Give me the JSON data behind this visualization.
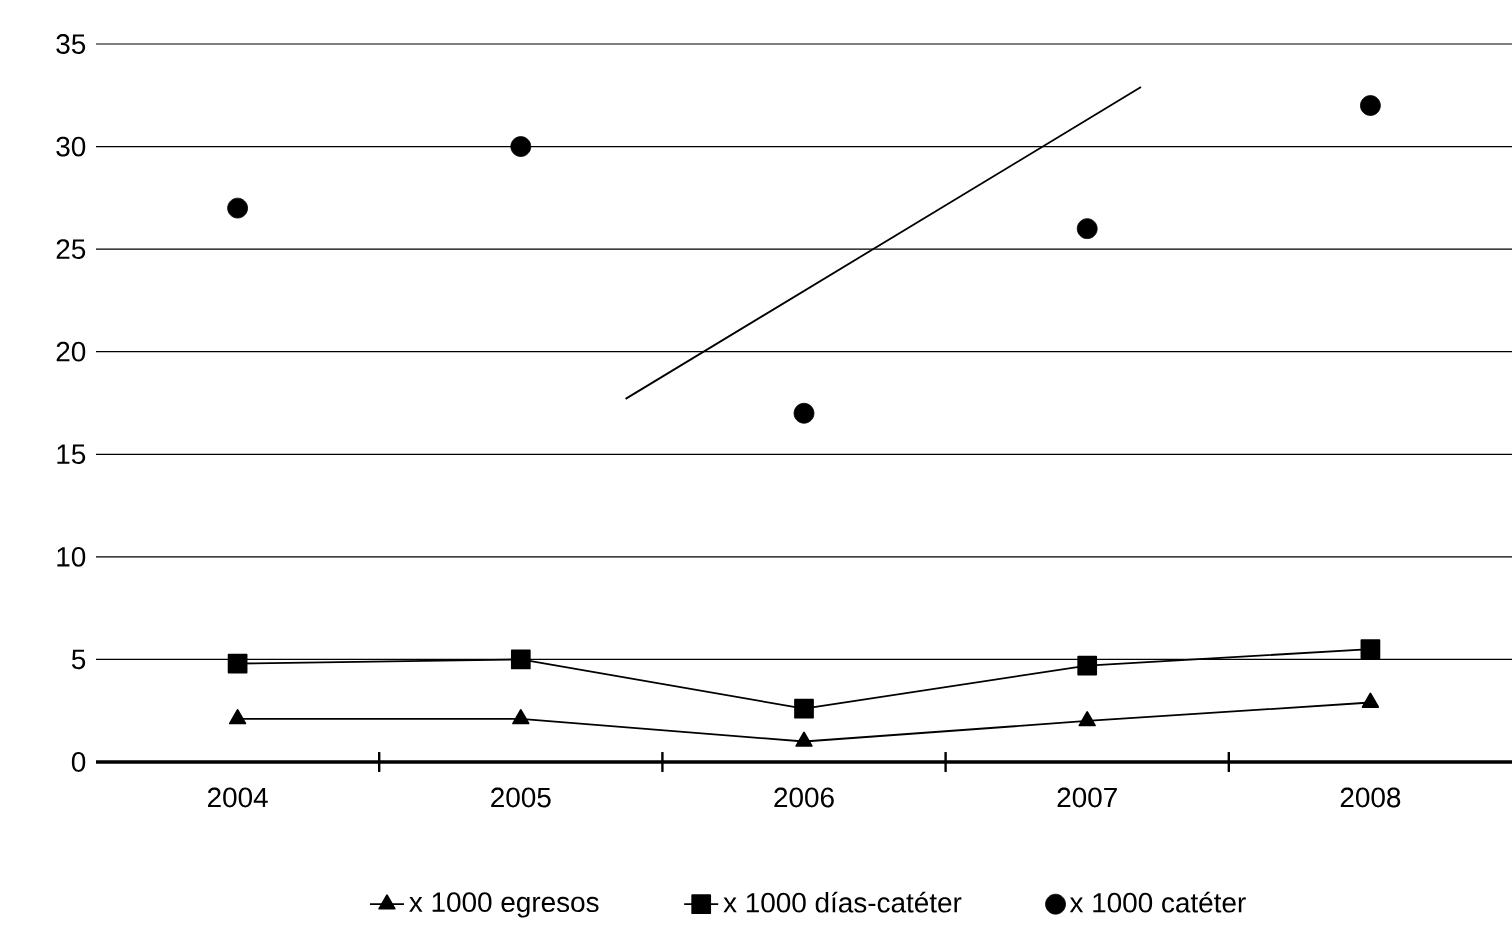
{
  "chart_data": {
    "type": "line",
    "x": [
      2004,
      2005,
      2006,
      2007,
      2008
    ],
    "xlim": [
      2003.5,
      2008.5
    ],
    "xticks": [
      2004,
      {
        "value": 2004.5,
        "label": null
      },
      2005,
      {
        "value": 2005.5,
        "label": null
      },
      2006,
      {
        "value": 2006.5,
        "label": null
      },
      2007,
      {
        "value": 2007.5,
        "label": null
      },
      2008
    ],
    "ylim": [
      0,
      35
    ],
    "yticks": [
      0,
      5,
      10,
      15,
      20,
      25,
      30,
      35
    ],
    "grid": "y",
    "legend": "bottom",
    "series": [
      {
        "name": "x 1000 egresos",
        "marker": "triangle",
        "color": "#000000",
        "values": [
          2.1,
          2.1,
          1.0,
          2.0,
          2.9
        ]
      },
      {
        "name": "x 1000 días-catéter",
        "marker": "square",
        "color": "#000000",
        "values": [
          4.8,
          5.0,
          2.6,
          4.7,
          5.5
        ]
      },
      {
        "name": "x 1000 catéter",
        "type": "scatter",
        "marker": "circle",
        "color": "#000000",
        "values": [
          27,
          30,
          17,
          26,
          32
        ]
      },
      {
        "marker": "none",
        "color": "#000000",
        "x": [
          2005.37,
          2007.19
        ],
        "values": [
          17.7,
          32.9
        ]
      }
    ]
  }
}
